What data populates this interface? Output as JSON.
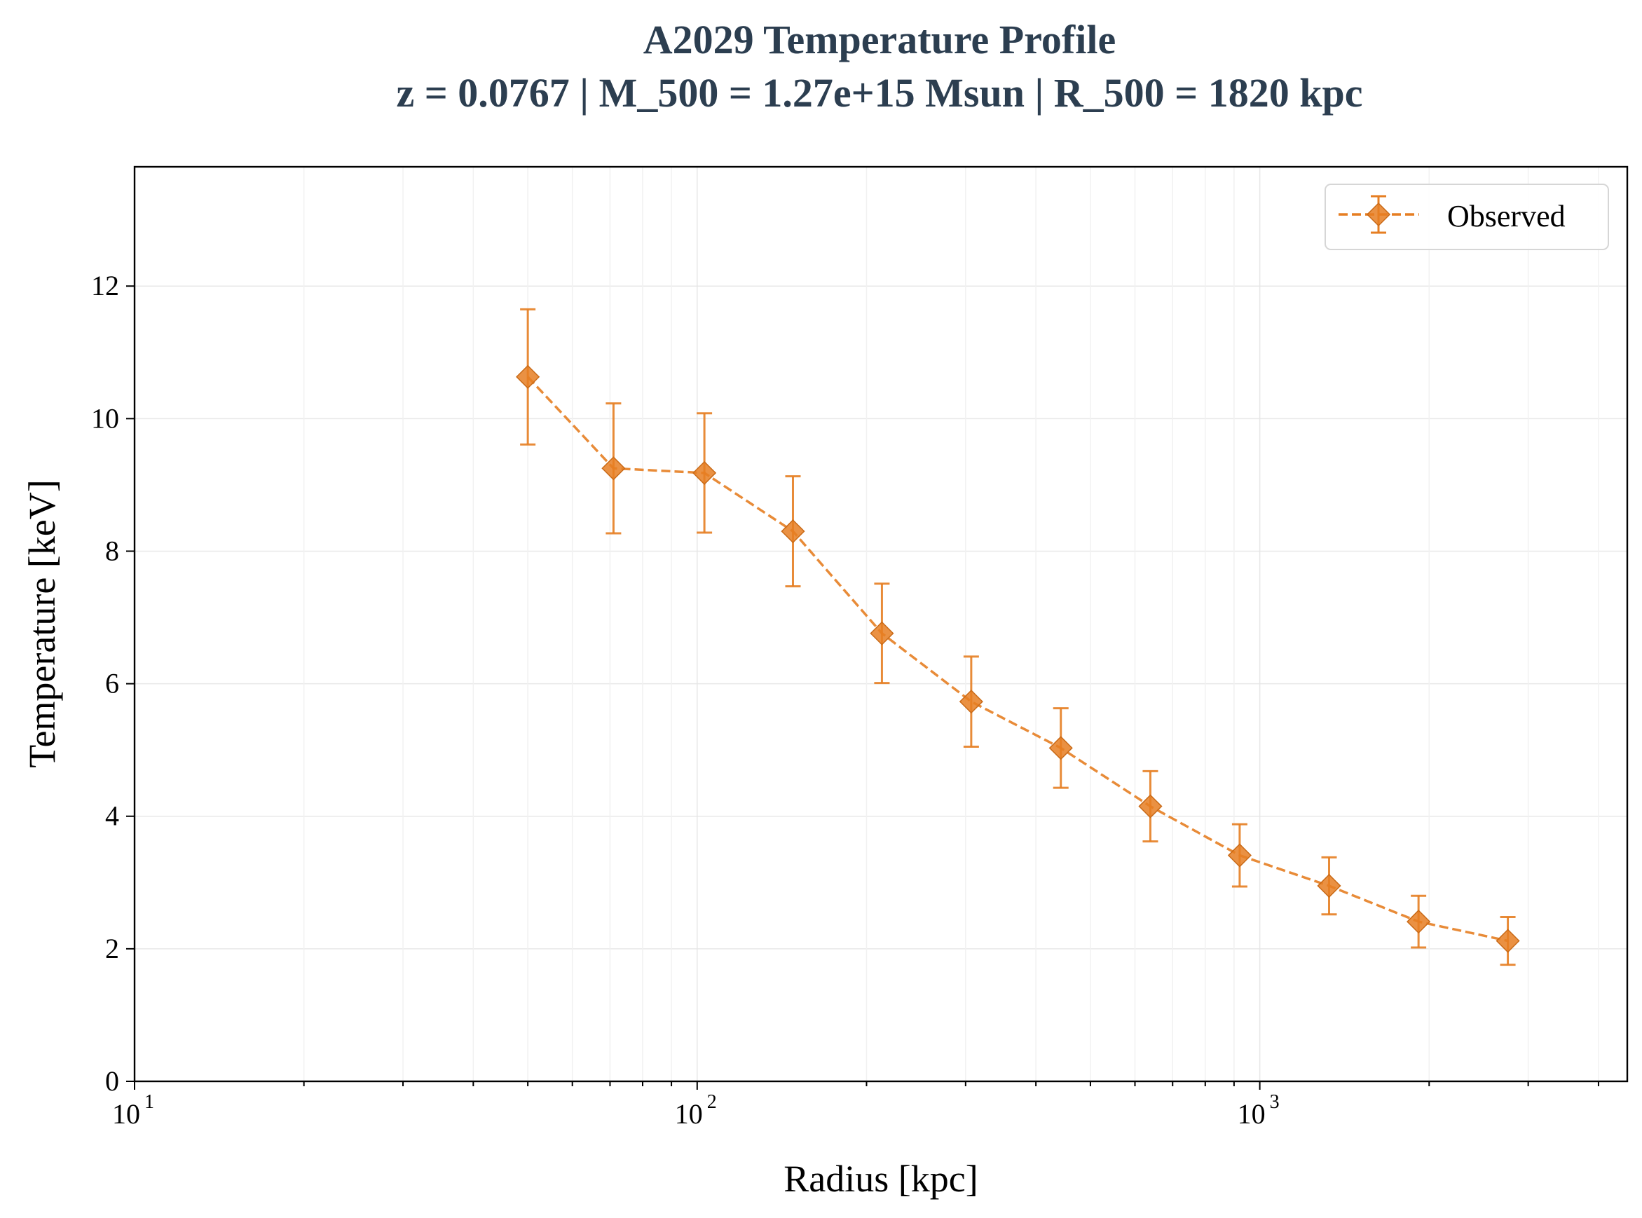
{
  "chart_data": {
    "type": "line",
    "title": "A2029 Temperature Profile",
    "subtitle": "z = 0.0767 | M_500 = 1.27e+15 Msun | R_500 = 1820 kpc",
    "xlabel": "Radius [kpc]",
    "ylabel": "Temperature [keV]",
    "xscale": "log",
    "xlim": [
      10,
      4500
    ],
    "ylim": [
      0,
      13.8
    ],
    "x_ticks": [
      {
        "base": "10",
        "exp": "1",
        "value": 10
      },
      {
        "base": "10",
        "exp": "2",
        "value": 100
      },
      {
        "base": "10",
        "exp": "3",
        "value": 1000
      }
    ],
    "y_ticks": [
      "0",
      "2",
      "4",
      "6",
      "8",
      "10",
      "12"
    ],
    "grid": true,
    "legend_position": "top-right",
    "series": [
      {
        "name": "Observed",
        "color": "#e67e22",
        "marker": "diamond",
        "linestyle": "dashed",
        "points": [
          {
            "x": 50,
            "y": 10.63,
            "err": 1.02
          },
          {
            "x": 71,
            "y": 9.25,
            "err": 0.98
          },
          {
            "x": 103,
            "y": 9.18,
            "err": 0.9
          },
          {
            "x": 148,
            "y": 8.3,
            "err": 0.83
          },
          {
            "x": 213,
            "y": 6.76,
            "err": 0.75
          },
          {
            "x": 307,
            "y": 5.73,
            "err": 0.68
          },
          {
            "x": 443,
            "y": 5.03,
            "err": 0.6
          },
          {
            "x": 639,
            "y": 4.15,
            "err": 0.53
          },
          {
            "x": 921,
            "y": 3.41,
            "err": 0.47
          },
          {
            "x": 1328,
            "y": 2.95,
            "err": 0.43
          },
          {
            "x": 1915,
            "y": 2.41,
            "err": 0.39
          },
          {
            "x": 2760,
            "y": 2.12,
            "err": 0.36
          }
        ]
      }
    ]
  }
}
